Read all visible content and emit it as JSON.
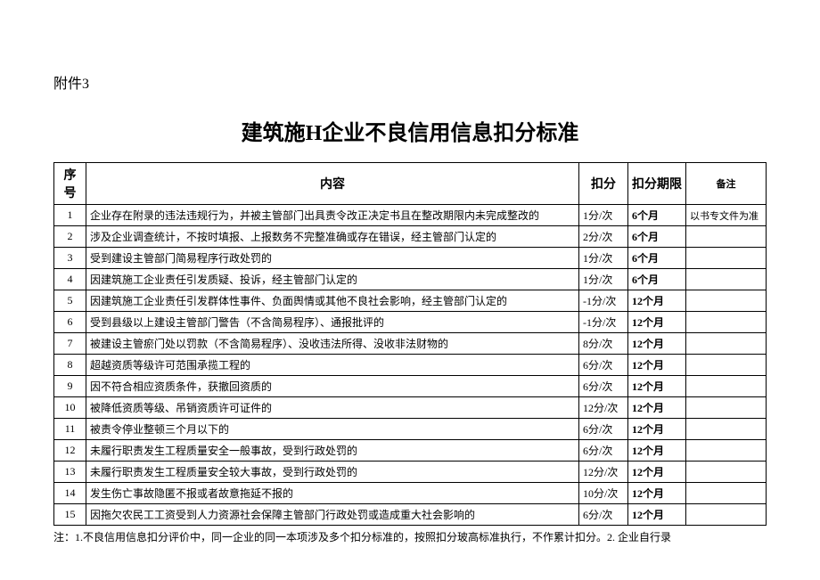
{
  "attachment_label": "附件3",
  "title": "建筑施H企业不良信用信息扣分标准",
  "table": {
    "headers": {
      "seq": "序号",
      "content": "内容",
      "deduct": "扣分",
      "period": "扣分期限",
      "remark": "备注"
    },
    "rows": [
      {
        "seq": "1",
        "content": "企业存在附录的违法违规行为，并被主管部门出具责令改正决定书且在整改期限内未完成整改的",
        "deduct": "1分/次",
        "period": "6个月",
        "remark": "以书专文件为准"
      },
      {
        "seq": "2",
        "content": "涉及企业调查统计，不按时填报、上报数务不完整准确或存在错误，经主管部门认定的",
        "deduct": "2分/次",
        "period": "6个月",
        "remark": ""
      },
      {
        "seq": "3",
        "content": "受到建设主管部门简易程序行政处罚的",
        "deduct": "1分/次",
        "period": "6个月",
        "remark": ""
      },
      {
        "seq": "4",
        "content": "因建筑施工企业责任引发质疑、投诉，经主管部门认定的",
        "deduct": "1分/次",
        "period": "6个月",
        "remark": ""
      },
      {
        "seq": "5",
        "content": "因建筑施工企业责任引发群体性事件、负面舆情或其他不良社会影响，经主管部门认定的",
        "deduct": "-1分/次",
        "period": "12个月",
        "remark": ""
      },
      {
        "seq": "6",
        "content": "受到县级以上建设主管部门警告（不含简易程序）、通报批评的",
        "deduct": "-1分/次",
        "period": "12个月",
        "remark": ""
      },
      {
        "seq": "7",
        "content": "被建设主管瘀门处以罚款（不含简易程序）、没收违法所得、没收非法财物的",
        "deduct": "8分/次",
        "period": "12个月",
        "remark": ""
      },
      {
        "seq": "8",
        "content": "超越资质等级许可范围承揽工程的",
        "deduct": "6分/次",
        "period": "12个月",
        "remark": ""
      },
      {
        "seq": "9",
        "content": "因不符合相应资质条件，获撤回资质的",
        "deduct": "6分/次",
        "period": "12个月",
        "remark": ""
      },
      {
        "seq": "10",
        "content": "被降低资质等级、吊销资质许可证件的",
        "deduct": "12分/次",
        "period": "12个月",
        "remark": ""
      },
      {
        "seq": "11",
        "content": "被责令停业整顿三个月以下的",
        "deduct": "6分/次",
        "period": "12个月",
        "remark": ""
      },
      {
        "seq": "12",
        "content": "未履行职责发生工程质量安全一般事故，受到行政处罚的",
        "deduct": "6分/次",
        "period": "12个月",
        "remark": ""
      },
      {
        "seq": "13",
        "content": "未履行职责发生工程质量安全较大事故，受到行政处罚的",
        "deduct": "12分/次",
        "period": "12个月",
        "remark": ""
      },
      {
        "seq": "14",
        "content": "发生伤亡事故隐匿不报或者故意拖延不报的",
        "deduct": "10分/次",
        "period": "12个月",
        "remark": ""
      },
      {
        "seq": "15",
        "content": "因拖欠农民工工资受到人力资源社会保障主管部门行政处罚或造成重大社会影响的",
        "deduct": "6分/次",
        "period": "12个月",
        "remark": ""
      }
    ]
  },
  "footnote": "注：1.不良信用信息扣分评价中，同一企业的同一本项涉及多个扣分标准的，按照扣分玻高标准执行，不作累计扣分。2. 企业自行录"
}
